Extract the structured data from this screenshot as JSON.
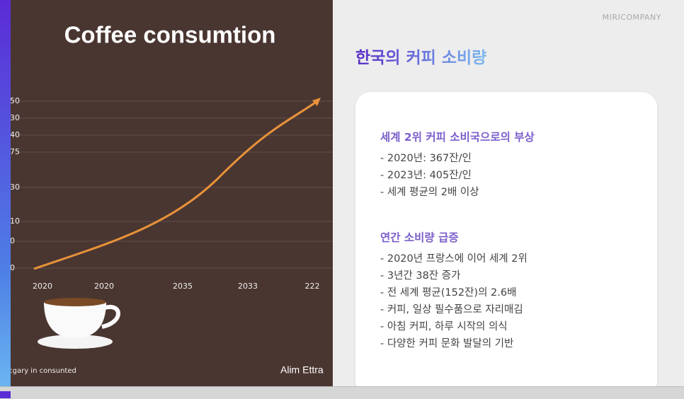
{
  "brand": "MIRICOMPANY",
  "slide_title": "한국의 커피 소비량",
  "left_panel": {
    "title": "Coffee consumtion",
    "y_labels": [
      "50",
      "30",
      "40",
      "75",
      "30",
      "10",
      "0",
      "0"
    ],
    "x_labels": [
      "2020",
      "2020",
      "2035",
      "2033",
      "222"
    ],
    "caption": "ocgary in consunted",
    "signature": "Alim Ettra"
  },
  "card": {
    "sections": [
      {
        "heading": "세계 2위 커피 소비국으로의 부상",
        "items": [
          "- 2020년: 367잔/인",
          "- 2023년: 405잔/인",
          "- 세계 평균의 2배 이상"
        ]
      },
      {
        "heading": "연간 소비량 급증",
        "items": [
          "- 2020년 프랑스에 이어 세계 2위",
          "- 3년간 38잔 증가",
          "- 전 세계 평균(152잔)의 2.6배",
          "- 커피, 일상 필수품으로 자리매김",
          "- 아침 커피, 하루 시작의 의식",
          "- 다양한 커피 문화 발달의 기반"
        ]
      }
    ]
  }
}
